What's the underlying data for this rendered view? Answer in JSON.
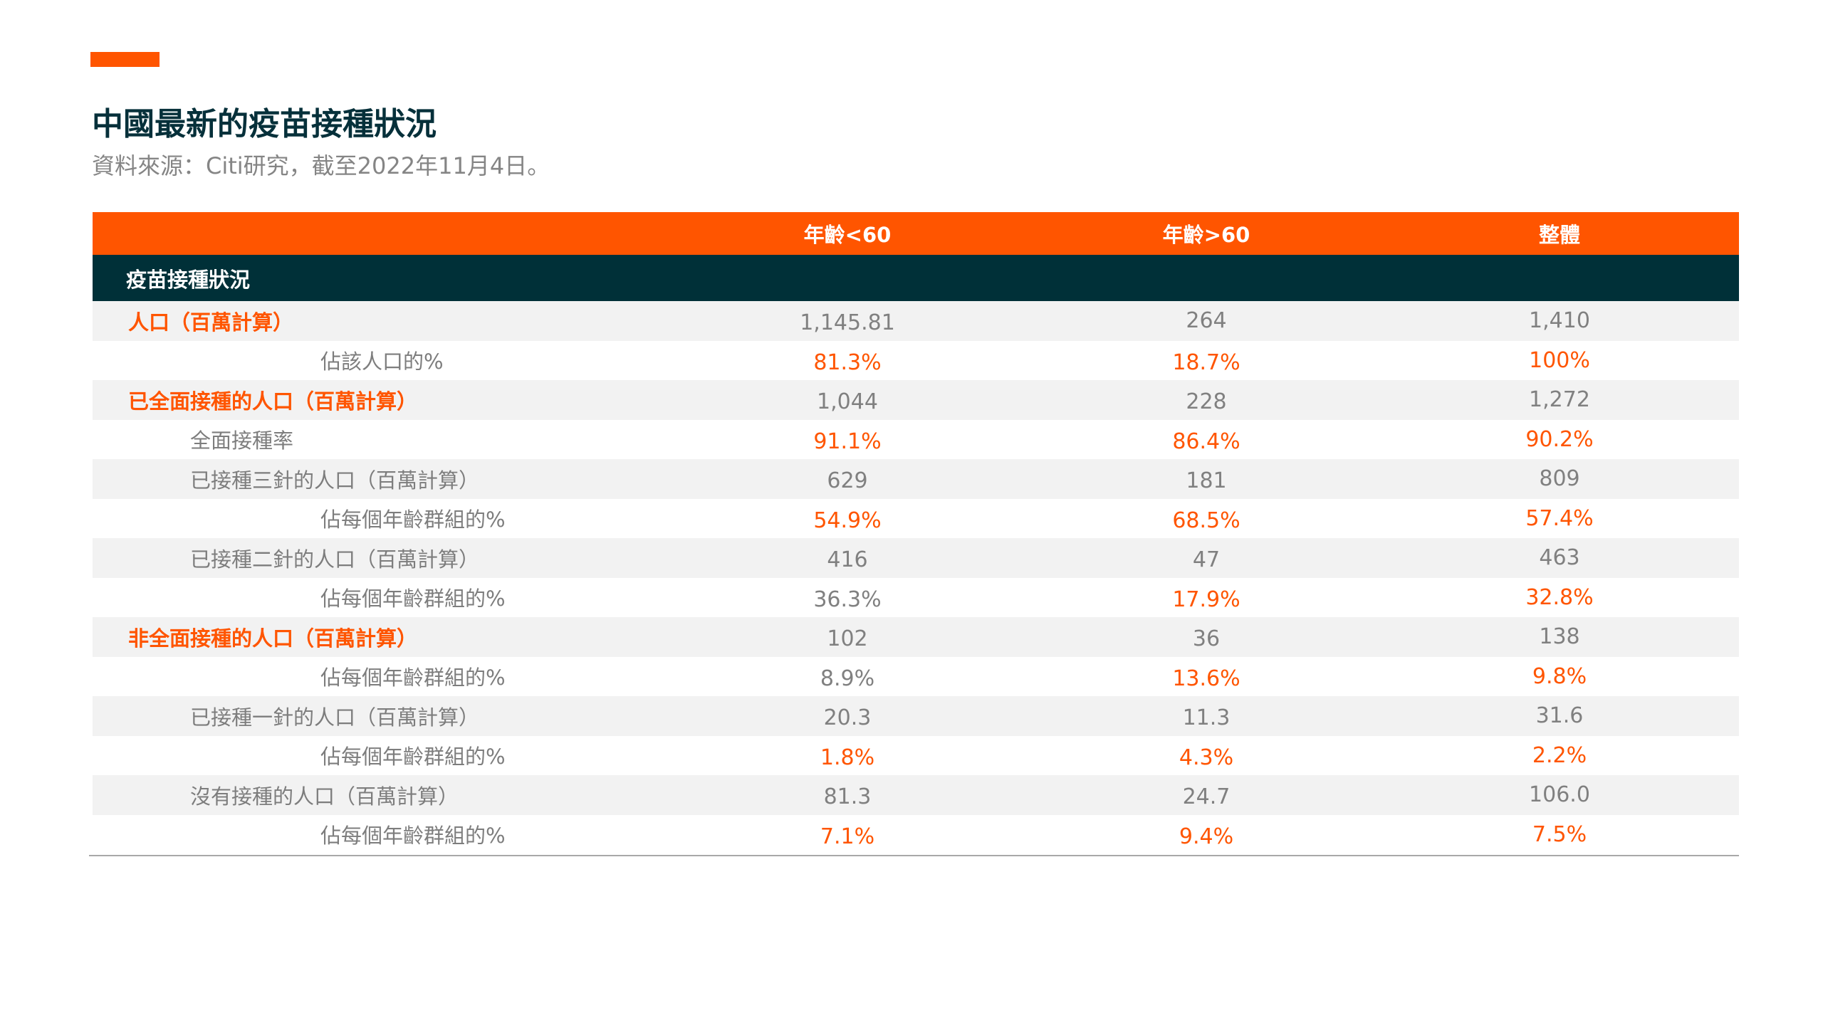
{
  "title": "中國最新的疫苗接種狀況",
  "subtitle": "資料來源：Citi研究，截至2022年11月4日。",
  "table": {
    "columns": [
      "年齡<60",
      "年齡>60",
      "整體"
    ],
    "section_label": "疫苗接種狀況",
    "rows": [
      {
        "label": "人口（百萬計算）",
        "values": [
          "1,145.81",
          "264",
          "1,410"
        ]
      },
      {
        "label": "佔該人口的%",
        "values": [
          "81.3%",
          "18.7%",
          "100%"
        ]
      },
      {
        "label": "已全面接種的人口（百萬計算）",
        "values": [
          "1,044",
          "228",
          "1,272"
        ]
      },
      {
        "label": "全面接種率",
        "values": [
          "91.1%",
          "86.4%",
          "90.2%"
        ]
      },
      {
        "label": "已接種三針的人口（百萬計算）",
        "values": [
          "629",
          "181",
          "809"
        ]
      },
      {
        "label": "佔每個年齡群組的%",
        "values": [
          "54.9%",
          "68.5%",
          "57.4%"
        ]
      },
      {
        "label": "已接種二針的人口（百萬計算）",
        "values": [
          "416",
          "47",
          "463"
        ]
      },
      {
        "label": "佔每個年齡群組的%",
        "values": [
          "36.3%",
          "17.9%",
          "32.8%"
        ]
      },
      {
        "label": "非全面接種的人口（百萬計算）",
        "values": [
          "102",
          "36",
          "138"
        ]
      },
      {
        "label": "佔每個年齡群組的%",
        "values": [
          "8.9%",
          "13.6%",
          "9.8%"
        ]
      },
      {
        "label": "已接種一針的人口（百萬計算）",
        "values": [
          "20.3",
          "11.3",
          "31.6"
        ]
      },
      {
        "label": "佔每個年齡群組的%",
        "values": [
          "1.8%",
          "4.3%",
          "2.2%"
        ]
      },
      {
        "label": "沒有接種的人口（百萬計算）",
        "values": [
          "81.3",
          "24.7",
          "106.0"
        ]
      },
      {
        "label": "佔每個年齡群組的%",
        "values": [
          "7.1%",
          "9.4%",
          "7.5%"
        ]
      }
    ]
  },
  "colors": {
    "accent": "#FF5500",
    "dark_teal": "#003038",
    "title_text": "#06303a",
    "muted_text": "#808080",
    "row_shade": "#f2f2f2"
  }
}
